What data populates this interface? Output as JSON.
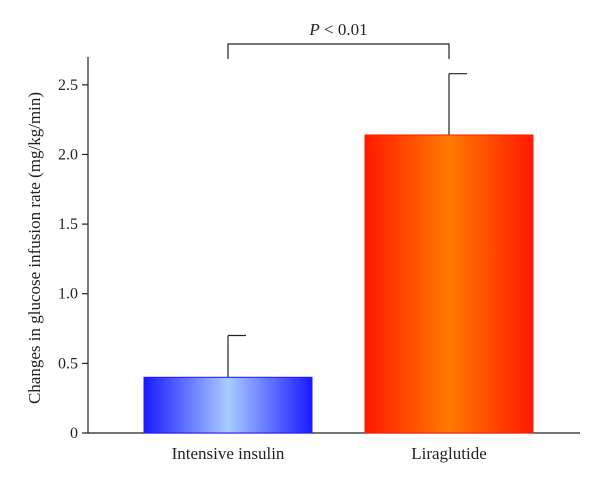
{
  "chart_data": {
    "type": "bar",
    "title": "",
    "xlabel": "",
    "ylabel": "Changes in glucose infusion rate (mg/kg/min)",
    "ylim": [
      0,
      2.7
    ],
    "y_ticks": [
      0,
      0.5,
      1.0,
      1.5,
      2.0,
      2.5
    ],
    "y_tick_labels": [
      "0",
      "0.5",
      "1.0",
      "1.5",
      "2.0",
      "2.5"
    ],
    "categories": [
      "Intensive insulin",
      "Liraglutide"
    ],
    "values": [
      0.4,
      2.14
    ],
    "error_upper": [
      0.7,
      2.58
    ],
    "grid": false,
    "legend": "none",
    "bar_colors": [
      {
        "edge": "#1a1aff",
        "center": "#a8ccff"
      },
      {
        "edge": "#ff1a00",
        "center": "#ff7a00"
      }
    ],
    "annotation": {
      "p_symbol": "P",
      "text": " < 0.01",
      "between": [
        "Intensive insulin",
        "Liraglutide"
      ]
    }
  }
}
